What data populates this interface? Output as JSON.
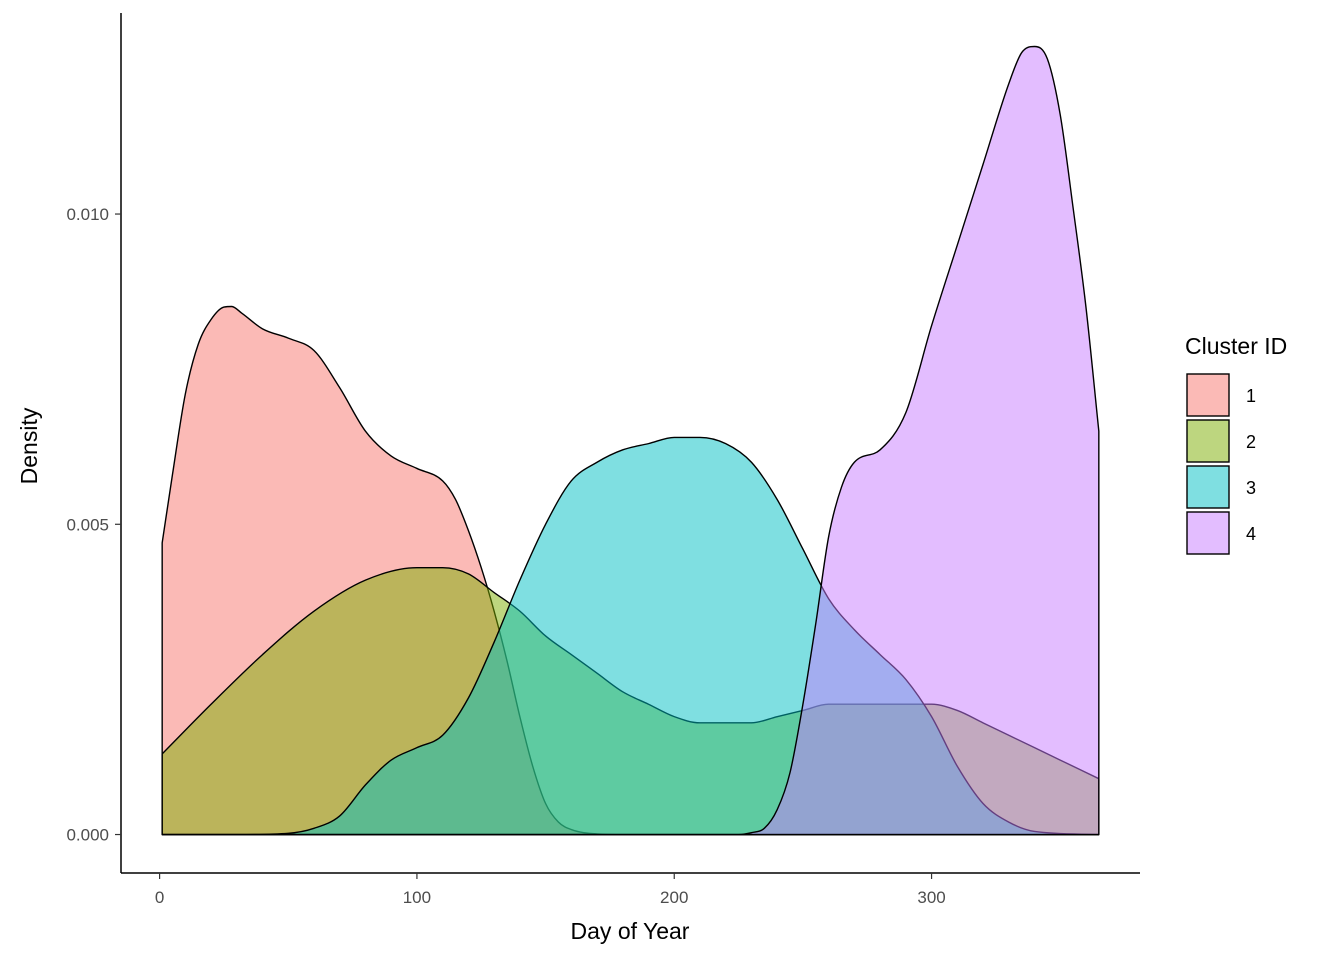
{
  "chart_data": {
    "type": "area",
    "chart_subtype": "density",
    "xlabel": "Day of Year",
    "ylabel": "Density",
    "xlim": [
      -15,
      381
    ],
    "ylim": [
      -0.00062,
      0.01324
    ],
    "x_ticks": [
      0,
      100,
      200,
      300
    ],
    "x_tick_labels": [
      "0",
      "100",
      "200",
      "300"
    ],
    "y_ticks": [
      0,
      0.005,
      0.01
    ],
    "y_tick_labels": [
      "0.000",
      "0.005",
      "0.010"
    ],
    "grid": false,
    "legend": {
      "title": "Cluster ID",
      "position": "right"
    },
    "fill_opacity": 0.5,
    "series": [
      {
        "name": "1",
        "color": "#F8766D",
        "x": [
          1,
          5,
          10,
          15,
          20,
          25,
          28,
          32,
          40,
          50,
          60,
          70,
          80,
          90,
          100,
          110,
          115,
          120,
          125,
          130,
          135,
          140,
          145,
          150,
          155,
          160,
          170,
          180,
          200,
          250,
          300,
          365
        ],
        "y": [
          0.0047,
          0.0058,
          0.0071,
          0.0079,
          0.0083,
          0.0085,
          0.00851,
          0.0084,
          0.00815,
          0.008,
          0.0078,
          0.0072,
          0.0065,
          0.0061,
          0.0059,
          0.0057,
          0.0054,
          0.0049,
          0.0043,
          0.0036,
          0.0028,
          0.0019,
          0.0011,
          0.0005,
          0.0002,
          8e-05,
          1e-05,
          0,
          0,
          0,
          0,
          0
        ]
      },
      {
        "name": "2",
        "color": "#7CAE00",
        "x": [
          1,
          20,
          40,
          60,
          80,
          100,
          110,
          120,
          130,
          140,
          150,
          160,
          170,
          180,
          190,
          200,
          210,
          220,
          230,
          240,
          250,
          260,
          270,
          280,
          290,
          300,
          310,
          320,
          330,
          340,
          350,
          365
        ],
        "y": [
          0.0013,
          0.0021,
          0.0029,
          0.0036,
          0.0041,
          0.0043,
          0.0043,
          0.0042,
          0.0039,
          0.0036,
          0.0032,
          0.0029,
          0.0026,
          0.0023,
          0.0021,
          0.0019,
          0.0018,
          0.0018,
          0.0018,
          0.0019,
          0.002,
          0.0021,
          0.0021,
          0.0021,
          0.0021,
          0.0021,
          0.002,
          0.0018,
          0.0016,
          0.0014,
          0.0012,
          0.0009
        ]
      },
      {
        "name": "3",
        "color": "#00BFC4",
        "x": [
          1,
          30,
          50,
          60,
          70,
          80,
          90,
          100,
          110,
          120,
          130,
          140,
          150,
          160,
          170,
          180,
          190,
          200,
          210,
          220,
          230,
          240,
          250,
          260,
          270,
          280,
          290,
          300,
          310,
          320,
          330,
          340,
          365
        ],
        "y": [
          0,
          0,
          2e-05,
          0.0001,
          0.0003,
          0.0008,
          0.0012,
          0.0014,
          0.0016,
          0.0022,
          0.0031,
          0.0041,
          0.005,
          0.0057,
          0.006,
          0.0062,
          0.0063,
          0.0064,
          0.0064,
          0.0063,
          0.006,
          0.0054,
          0.0046,
          0.0038,
          0.0033,
          0.0029,
          0.0025,
          0.0019,
          0.0011,
          0.0005,
          0.0002,
          5e-05,
          0
        ]
      },
      {
        "name": "4",
        "color": "#C77CFF",
        "x": [
          1,
          200,
          225,
          230,
          235,
          240,
          245,
          250,
          255,
          260,
          265,
          270,
          280,
          290,
          300,
          310,
          320,
          330,
          335,
          340,
          345,
          350,
          355,
          360,
          365
        ],
        "y": [
          0,
          0,
          0,
          3e-05,
          0.0001,
          0.0004,
          0.001,
          0.0021,
          0.0034,
          0.0048,
          0.0056,
          0.006,
          0.0062,
          0.0068,
          0.0082,
          0.0095,
          0.0108,
          0.0121,
          0.0126,
          0.0127,
          0.0125,
          0.0116,
          0.0101,
          0.0085,
          0.0065
        ]
      }
    ]
  }
}
